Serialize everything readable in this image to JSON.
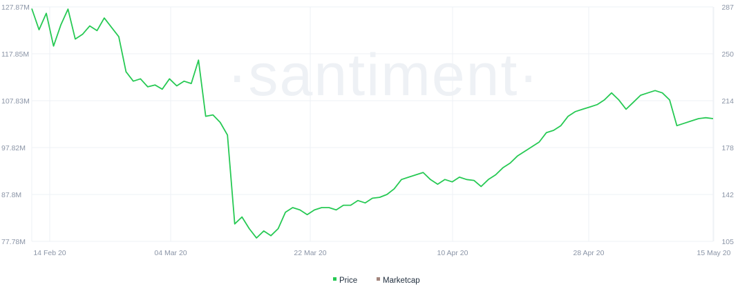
{
  "brand_watermark": "·santiment·",
  "colors": {
    "price": "#26c953",
    "marketcap": "#a3867d",
    "grid": "#eef1f5",
    "tick": "#8a94a6"
  },
  "chart_data": {
    "type": "line",
    "x_ticks": [
      "14 Feb 20",
      "04 Mar 20",
      "22 Mar 20",
      "10 Apr 20",
      "28 Apr 20",
      "15 May 20"
    ],
    "y_left_ticks": [
      "127.87M",
      "117.85M",
      "107.83M",
      "97.82M",
      "87.8M",
      "77.78M"
    ],
    "y_right_ticks": [
      "287",
      "250",
      "214",
      "178",
      "142",
      "105"
    ],
    "y_left_range": [
      77.78,
      127.87
    ],
    "y_right_range": [
      105,
      287
    ],
    "grid": true,
    "legend_position": "bottom-center",
    "x_range": [
      "2020-02-11",
      "2020-05-15"
    ],
    "series": [
      {
        "name": "Price",
        "axis": "left",
        "x": [
          "2020-02-11",
          "2020-02-12",
          "2020-02-13",
          "2020-02-14",
          "2020-02-15",
          "2020-02-16",
          "2020-02-17",
          "2020-02-18",
          "2020-02-19",
          "2020-02-20",
          "2020-02-21",
          "2020-02-22",
          "2020-02-23",
          "2020-02-24",
          "2020-02-25",
          "2020-02-26",
          "2020-02-27",
          "2020-02-28",
          "2020-02-29",
          "2020-03-01",
          "2020-03-02",
          "2020-03-03",
          "2020-03-04",
          "2020-03-05",
          "2020-03-06",
          "2020-03-07",
          "2020-03-08",
          "2020-03-09",
          "2020-03-10",
          "2020-03-11",
          "2020-03-12",
          "2020-03-13",
          "2020-03-14",
          "2020-03-15",
          "2020-03-16",
          "2020-03-17",
          "2020-03-18",
          "2020-03-19",
          "2020-03-20",
          "2020-03-21",
          "2020-03-22",
          "2020-03-23",
          "2020-03-24",
          "2020-03-25",
          "2020-03-26",
          "2020-03-27",
          "2020-03-28",
          "2020-03-29",
          "2020-03-30",
          "2020-03-31",
          "2020-04-01",
          "2020-04-02",
          "2020-04-03",
          "2020-04-04",
          "2020-04-05",
          "2020-04-06",
          "2020-04-07",
          "2020-04-08",
          "2020-04-09",
          "2020-04-10",
          "2020-04-11",
          "2020-04-12",
          "2020-04-13",
          "2020-04-14",
          "2020-04-15",
          "2020-04-16",
          "2020-04-17",
          "2020-04-18",
          "2020-04-19",
          "2020-04-20",
          "2020-04-21",
          "2020-04-22",
          "2020-04-23",
          "2020-04-24",
          "2020-04-25",
          "2020-04-26",
          "2020-04-27",
          "2020-04-28",
          "2020-04-29",
          "2020-04-30",
          "2020-05-01",
          "2020-05-02",
          "2020-05-03",
          "2020-05-04",
          "2020-05-05",
          "2020-05-06",
          "2020-05-07",
          "2020-05-08",
          "2020-05-09",
          "2020-05-10",
          "2020-05-11",
          "2020-05-12",
          "2020-05-13",
          "2020-05-14",
          "2020-05-15"
        ],
        "y": [
          127.5,
          123.0,
          126.5,
          119.5,
          124.0,
          127.4,
          121.0,
          122.0,
          123.8,
          122.8,
          125.5,
          123.5,
          121.5,
          114.0,
          112.0,
          112.5,
          110.8,
          111.2,
          110.3,
          112.5,
          111.0,
          112.0,
          111.5,
          116.5,
          104.5,
          104.8,
          103.2,
          100.5,
          81.5,
          83.0,
          80.5,
          78.5,
          80.0,
          79.0,
          80.5,
          84.0,
          85.0,
          84.5,
          83.5,
          84.5,
          85.0,
          85.0,
          84.5,
          85.5,
          85.5,
          86.5,
          86.0,
          87.0,
          87.2,
          87.8,
          89.0,
          91.0,
          91.5,
          92.0,
          92.5,
          91.0,
          90.0,
          91.0,
          90.5,
          91.5,
          91.0,
          90.8,
          89.5,
          91.0,
          92.0,
          93.5,
          94.5,
          96.0,
          97.0,
          98.0,
          99.0,
          101.0,
          101.5,
          102.5,
          104.5,
          105.5,
          106.0,
          106.5,
          107.0,
          108.0,
          109.5,
          108.0,
          106.0,
          107.5,
          109.0,
          109.5,
          110.0,
          109.5,
          108.0,
          102.5,
          103.0,
          103.5,
          104.0,
          104.2,
          104.0
        ],
        "note": ""
      },
      {
        "name": "Marketcap",
        "axis": "right",
        "x": [],
        "y": []
      }
    ]
  }
}
